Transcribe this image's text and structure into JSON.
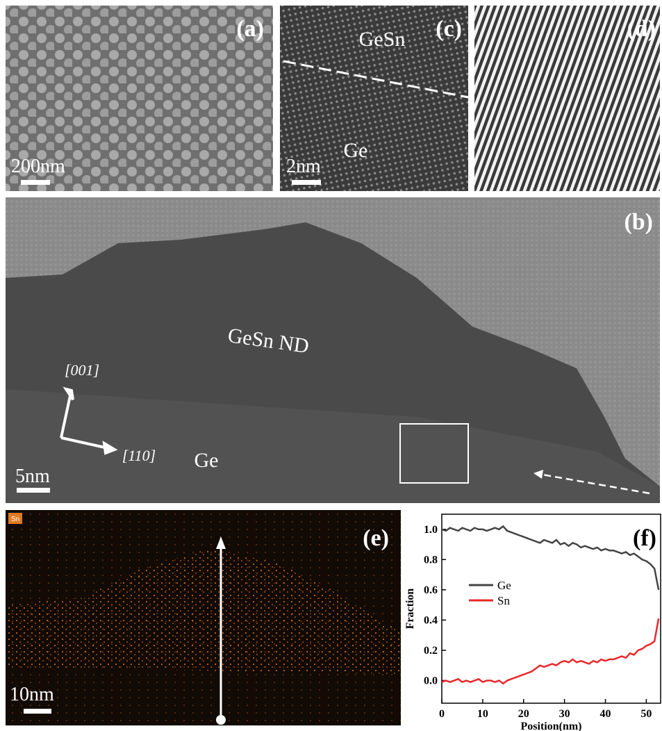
{
  "panels": {
    "a": {
      "label": "(a)",
      "scale_bar": "200nm"
    },
    "c": {
      "label": "(c)",
      "top_layer": "GeSn",
      "bottom_layer": "Ge",
      "scale_bar": "2nm"
    },
    "d": {
      "label": "(d)"
    },
    "b": {
      "label": "(b)",
      "nanodot": "GeSn ND",
      "direction_up": "[001]",
      "direction_right": "[110]",
      "substrate": "Ge",
      "scale_bar": "5nm"
    },
    "e": {
      "label": "(e)",
      "element": "Sn",
      "scale_bar": "10nm"
    }
  },
  "chart_data": {
    "type": "line",
    "panel_label": "(f)",
    "xlabel": "Position(nm)",
    "ylabel": "Fraction",
    "x": [
      0,
      1,
      2,
      3,
      4,
      5,
      6,
      7,
      8,
      9,
      10,
      11,
      12,
      13,
      14,
      15,
      16,
      17,
      18,
      19,
      20,
      21,
      22,
      23,
      24,
      25,
      26,
      27,
      28,
      29,
      30,
      31,
      32,
      33,
      34,
      35,
      36,
      37,
      38,
      39,
      40,
      41,
      42,
      43,
      44,
      45,
      46,
      47,
      48,
      49,
      50,
      51,
      52,
      53
    ],
    "series": [
      {
        "name": "Ge",
        "color": "#444444",
        "values": [
          1.0,
          0.99,
          1.01,
          1.0,
          0.99,
          1.01,
          1.0,
          0.99,
          1.01,
          1.0,
          1.0,
          0.99,
          1.0,
          1.01,
          1.0,
          1.02,
          0.99,
          0.98,
          0.97,
          0.96,
          0.95,
          0.94,
          0.93,
          0.92,
          0.91,
          0.93,
          0.92,
          0.91,
          0.93,
          0.9,
          0.91,
          0.89,
          0.91,
          0.9,
          0.88,
          0.89,
          0.88,
          0.87,
          0.88,
          0.86,
          0.87,
          0.86,
          0.86,
          0.85,
          0.84,
          0.85,
          0.83,
          0.84,
          0.82,
          0.8,
          0.79,
          0.77,
          0.74,
          0.6
        ]
      },
      {
        "name": "Sn",
        "color": "#e8282b",
        "values": [
          -0.01,
          0.0,
          -0.01,
          0.0,
          0.01,
          -0.01,
          0.0,
          -0.01,
          0.0,
          0.01,
          -0.01,
          0.0,
          0.0,
          -0.01,
          0.0,
          -0.02,
          0.0,
          0.01,
          0.02,
          0.03,
          0.04,
          0.05,
          0.06,
          0.08,
          0.1,
          0.09,
          0.1,
          0.11,
          0.1,
          0.12,
          0.13,
          0.12,
          0.14,
          0.12,
          0.13,
          0.12,
          0.11,
          0.13,
          0.12,
          0.14,
          0.13,
          0.14,
          0.14,
          0.15,
          0.16,
          0.15,
          0.18,
          0.17,
          0.2,
          0.21,
          0.23,
          0.24,
          0.26,
          0.41
        ]
      }
    ],
    "xlim": [
      0,
      53.5
    ],
    "ylim": [
      -0.15,
      1.1
    ],
    "xticks": [
      0,
      10,
      20,
      30,
      40,
      50
    ],
    "yticks": [
      {
        "value": 0,
        "label": "0.0"
      },
      {
        "value": 0.2,
        "label": "0.2"
      },
      {
        "value": 0.4,
        "label": "0.4"
      },
      {
        "value": 0.6,
        "label": "0.6"
      },
      {
        "value": 0.8,
        "label": "0.8"
      },
      {
        "value": 1,
        "label": "1.0"
      }
    ]
  }
}
